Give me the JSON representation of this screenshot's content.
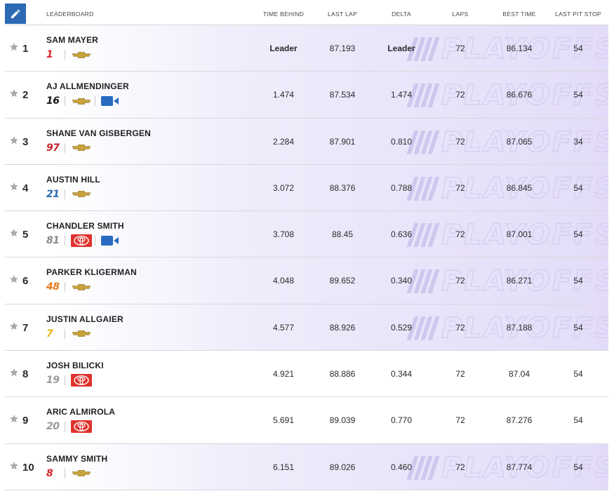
{
  "header": {
    "leaderboard_label": "LEADERBOARD",
    "columns": [
      {
        "key": "time_behind",
        "label": "TIME BEHIND"
      },
      {
        "key": "last_lap",
        "label": "LAST LAP"
      },
      {
        "key": "delta",
        "label": "DELTA"
      },
      {
        "key": "laps",
        "label": "LAPS"
      },
      {
        "key": "best_time",
        "label": "BEST TIME"
      },
      {
        "key": "last_pit_stop",
        "label": "LAST PIT STOP"
      }
    ]
  },
  "watermark_text": "PLAYOFFS",
  "icons": {
    "edit": "pencil-icon",
    "favorite": "star-icon",
    "chevrolet": "chevrolet-bowtie-icon",
    "toyota": "toyota-logo-icon",
    "camera": "video-camera-icon"
  },
  "colors": {
    "accent_blue": "#2c6ab4",
    "toyota_red": "#e0322d",
    "chevy_gold": "#c9a23c",
    "star_gray": "#a9a9a9",
    "playoff_purple": "#e3dcf8"
  },
  "rows": [
    {
      "position": "1",
      "driver": "SAM MAYER",
      "car_number": "1",
      "car_number_color": "#d8262b",
      "make": "chevrolet",
      "camera": false,
      "playoff": true,
      "time_behind": "Leader",
      "last_lap": "87.193",
      "delta": "Leader",
      "laps": "72",
      "best_time": "86.134",
      "last_pit_stop": "54"
    },
    {
      "position": "2",
      "driver": "AJ ALLMENDINGER",
      "car_number": "16",
      "car_number_color": "#1a1a1a",
      "make": "chevrolet",
      "camera": true,
      "playoff": true,
      "time_behind": "1.474",
      "last_lap": "87.534",
      "delta": "1.474",
      "laps": "72",
      "best_time": "86.676",
      "last_pit_stop": "54"
    },
    {
      "position": "3",
      "driver": "SHANE VAN GISBERGEN",
      "car_number": "97",
      "car_number_color": "#c8232c",
      "make": "chevrolet",
      "camera": false,
      "playoff": true,
      "time_behind": "2.284",
      "last_lap": "87.901",
      "delta": "0.810",
      "laps": "72",
      "best_time": "87.065",
      "last_pit_stop": "34"
    },
    {
      "position": "4",
      "driver": "AUSTIN HILL",
      "car_number": "21",
      "car_number_color": "#2d6bb0",
      "make": "chevrolet",
      "camera": false,
      "playoff": true,
      "time_behind": "3.072",
      "last_lap": "88.376",
      "delta": "0.788",
      "laps": "72",
      "best_time": "86.845",
      "last_pit_stop": "54"
    },
    {
      "position": "5",
      "driver": "CHANDLER SMITH",
      "car_number": "81",
      "car_number_color": "#8a8a8a",
      "make": "toyota",
      "camera": true,
      "playoff": true,
      "time_behind": "3.708",
      "last_lap": "88.45",
      "delta": "0.636",
      "laps": "72",
      "best_time": "87.001",
      "last_pit_stop": "54"
    },
    {
      "position": "6",
      "driver": "PARKER KLIGERMAN",
      "car_number": "48",
      "car_number_color": "#e57a1f",
      "make": "chevrolet",
      "camera": false,
      "playoff": true,
      "time_behind": "4.048",
      "last_lap": "89.652",
      "delta": "0.340",
      "laps": "72",
      "best_time": "86.271",
      "last_pit_stop": "54"
    },
    {
      "position": "7",
      "driver": "JUSTIN ALLGAIER",
      "car_number": "7",
      "car_number_color": "#e6b517",
      "make": "chevrolet",
      "camera": false,
      "playoff": true,
      "time_behind": "4.577",
      "last_lap": "88.926",
      "delta": "0.529",
      "laps": "72",
      "best_time": "87.188",
      "last_pit_stop": "54"
    },
    {
      "position": "8",
      "driver": "JOSH BILICKI",
      "car_number": "19",
      "car_number_color": "#9a9a9a",
      "make": "toyota",
      "camera": false,
      "playoff": false,
      "time_behind": "4.921",
      "last_lap": "88.886",
      "delta": "0.344",
      "laps": "72",
      "best_time": "87.04",
      "last_pit_stop": "54"
    },
    {
      "position": "9",
      "driver": "ARIC ALMIROLA",
      "car_number": "20",
      "car_number_color": "#9a9a9a",
      "make": "toyota",
      "camera": false,
      "playoff": false,
      "time_behind": "5.691",
      "last_lap": "89.039",
      "delta": "0.770",
      "laps": "72",
      "best_time": "87.276",
      "last_pit_stop": "54"
    },
    {
      "position": "10",
      "driver": "SAMMY SMITH",
      "car_number": "8",
      "car_number_color": "#d8262b",
      "make": "chevrolet",
      "camera": false,
      "playoff": true,
      "time_behind": "6.151",
      "last_lap": "89.026",
      "delta": "0.460",
      "laps": "72",
      "best_time": "87.774",
      "last_pit_stop": "54"
    }
  ]
}
